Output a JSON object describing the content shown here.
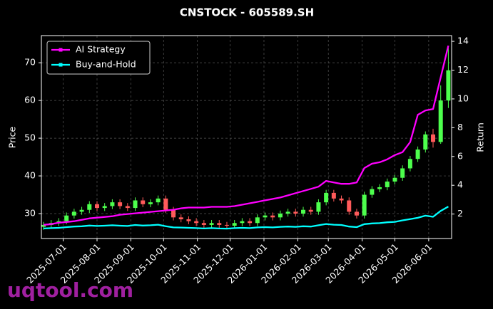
{
  "chart_data": {
    "type": "candlestick",
    "title": "CNSTOCK - 605589.SH",
    "y_label": "Price",
    "y2_label": "Return",
    "watermark": "uqtool.com",
    "x": [
      "2025-06-13",
      "2025-06-20",
      "2025-06-27",
      "2025-07-04",
      "2025-07-11",
      "2025-07-18",
      "2025-07-25",
      "2025-08-01",
      "2025-08-08",
      "2025-08-15",
      "2025-08-22",
      "2025-08-29",
      "2025-09-05",
      "2025-09-12",
      "2025-09-19",
      "2025-09-26",
      "2025-10-03",
      "2025-10-10",
      "2025-10-17",
      "2025-10-24",
      "2025-10-31",
      "2025-11-07",
      "2025-11-14",
      "2025-11-21",
      "2025-11-28",
      "2025-12-05",
      "2025-12-12",
      "2025-12-19",
      "2025-12-26",
      "2026-01-02",
      "2026-01-09",
      "2026-01-16",
      "2026-01-23",
      "2026-01-30",
      "2026-02-06",
      "2026-02-13",
      "2026-02-20",
      "2026-02-27",
      "2026-03-06",
      "2026-03-13",
      "2026-03-20",
      "2026-03-27",
      "2026-04-03",
      "2026-04-10",
      "2026-04-17",
      "2026-04-24",
      "2026-05-01",
      "2026-05-08",
      "2026-05-15",
      "2026-05-22",
      "2026-05-29",
      "2026-06-05",
      "2026-06-12",
      "2026-06-19"
    ],
    "open": [
      26.5,
      27,
      27.5,
      28,
      29.5,
      30.5,
      31,
      32.5,
      31.5,
      32,
      33,
      32,
      31.5,
      33.5,
      32.5,
      33,
      34,
      31,
      29,
      28.5,
      28,
      27.5,
      27,
      27.5,
      27,
      26.8,
      27.5,
      28,
      27.5,
      29,
      29.5,
      29,
      30,
      30.5,
      30,
      31,
      30.5,
      33,
      35.5,
      34,
      33.5,
      30.5,
      29.5,
      35,
      36.5,
      37,
      38.5,
      39.5,
      42,
      44.5,
      47,
      51,
      49,
      60
    ],
    "high": [
      27.8,
      28.3,
      28.8,
      30.3,
      31.3,
      31.8,
      33.3,
      33.3,
      32.8,
      33.8,
      33.8,
      32.8,
      34.3,
      34.3,
      33.8,
      34.8,
      34.8,
      31.8,
      29.8,
      29.3,
      28.8,
      28.3,
      28.3,
      28.3,
      27.8,
      28.3,
      28.8,
      28.8,
      29.8,
      30.3,
      30.3,
      30.8,
      31.3,
      31.3,
      31.8,
      31.8,
      33.8,
      36.3,
      36.3,
      34.8,
      34.3,
      31.3,
      35.8,
      37.3,
      37.8,
      39.3,
      40.3,
      42.8,
      45.3,
      47.8,
      51.8,
      52.5,
      64,
      74
    ],
    "low": [
      25.7,
      26.2,
      26.7,
      27.2,
      28.7,
      29.7,
      30.2,
      30.7,
      30.7,
      31.2,
      31.2,
      30.7,
      30.7,
      31.7,
      31.7,
      32.2,
      30.2,
      28.2,
      27.7,
      27.2,
      26.7,
      26.2,
      26.2,
      26.2,
      26,
      26,
      26.7,
      26.7,
      26.7,
      28.2,
      28.2,
      28.2,
      29.2,
      29.2,
      29.2,
      29.7,
      29.7,
      32.2,
      33.2,
      32.7,
      29.7,
      28.7,
      28.7,
      34.2,
      35.7,
      36.2,
      37.7,
      38.7,
      41.2,
      43.7,
      46.2,
      47.5,
      48.5,
      58
    ],
    "close": [
      27,
      27.5,
      28,
      29.5,
      30.5,
      31,
      32.5,
      31.5,
      32,
      33,
      32,
      31.5,
      33.5,
      32.5,
      33,
      34,
      31,
      29,
      28.5,
      28,
      27.5,
      27,
      27.5,
      27,
      26.8,
      27.5,
      28,
      27.5,
      29,
      29.5,
      29,
      30,
      30.5,
      30,
      31,
      30.5,
      33,
      35.5,
      34,
      33.5,
      30.5,
      29.5,
      35,
      36.5,
      37,
      38.5,
      39.5,
      42,
      44.5,
      47,
      51,
      49,
      60,
      68
    ],
    "up_color": "#4dff4d",
    "down_color": "#ff5a5a",
    "series": [
      {
        "name": "AI Strategy",
        "color": "#ff00ff",
        "axis": "y2",
        "values": [
          1.25,
          1.3,
          1.4,
          1.45,
          1.5,
          1.6,
          1.7,
          1.75,
          1.8,
          1.85,
          1.95,
          2.0,
          2.05,
          2.1,
          2.15,
          2.2,
          2.25,
          2.3,
          2.4,
          2.45,
          2.45,
          2.45,
          2.5,
          2.5,
          2.5,
          2.55,
          2.65,
          2.75,
          2.85,
          2.95,
          3.05,
          3.15,
          3.3,
          3.45,
          3.6,
          3.75,
          3.9,
          4.3,
          4.2,
          4.1,
          4.1,
          4.2,
          5.2,
          5.5,
          5.6,
          5.8,
          6.1,
          6.3,
          7.0,
          8.9,
          9.2,
          9.3,
          11.5,
          13.7
        ]
      },
      {
        "name": "Buy-and-Hold",
        "color": "#00ffff",
        "axis": "y2",
        "values": [
          1.0,
          1.02,
          1.04,
          1.09,
          1.13,
          1.15,
          1.2,
          1.17,
          1.19,
          1.22,
          1.19,
          1.17,
          1.24,
          1.2,
          1.22,
          1.26,
          1.15,
          1.07,
          1.06,
          1.04,
          1.02,
          1.0,
          1.02,
          1.0,
          0.99,
          1.02,
          1.04,
          1.02,
          1.07,
          1.09,
          1.07,
          1.11,
          1.13,
          1.11,
          1.15,
          1.13,
          1.22,
          1.31,
          1.26,
          1.24,
          1.13,
          1.09,
          1.3,
          1.35,
          1.37,
          1.43,
          1.46,
          1.56,
          1.65,
          1.74,
          1.89,
          1.81,
          2.22,
          2.52
        ]
      }
    ],
    "xlim": [
      "2025-06-11",
      "2026-06-22"
    ],
    "xticks": [
      "2025-07-01",
      "2025-08-01",
      "2025-09-01",
      "2025-10-01",
      "2025-11-01",
      "2025-12-01",
      "2026-01-01",
      "2026-02-01",
      "2026-03-01",
      "2026-04-01",
      "2026-05-01",
      "2026-06-01"
    ],
    "ylim": [
      23.4,
      77.2
    ],
    "yticks": [
      30,
      40,
      50,
      60,
      70
    ],
    "y2lim": [
      0.3,
      14.4
    ],
    "y2ticks": [
      2,
      4,
      6,
      8,
      10,
      12,
      14
    ],
    "grid": true,
    "legend": "upper left"
  }
}
